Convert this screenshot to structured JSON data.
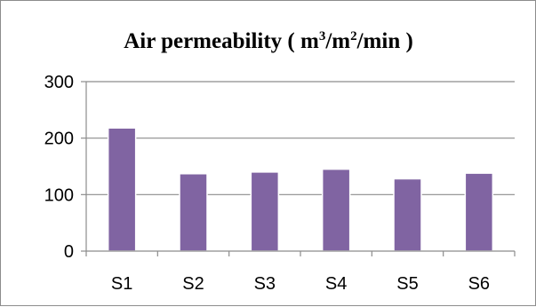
{
  "chart_data": {
    "type": "bar",
    "title_main": "Air permeability ( m",
    "title_sup1": "3",
    "title_mid": "/m",
    "title_sup2": "2",
    "title_end": "/min )",
    "xlabel": "",
    "ylabel": "",
    "categories": [
      "S1",
      "S2",
      "S3",
      "S4",
      "S5",
      "S6"
    ],
    "values": [
      218,
      137,
      140,
      145,
      128,
      138
    ],
    "ylim": [
      0,
      300
    ],
    "yticks": [
      "0",
      "100",
      "200",
      "300"
    ],
    "grid": true,
    "legend": "none",
    "colors": {
      "bar": "#8064A2",
      "bar_edge": "#5e4a7a",
      "grid": "#8c8c8c",
      "axis": "#8c8c8c",
      "frame": "#8c8c8c"
    }
  }
}
